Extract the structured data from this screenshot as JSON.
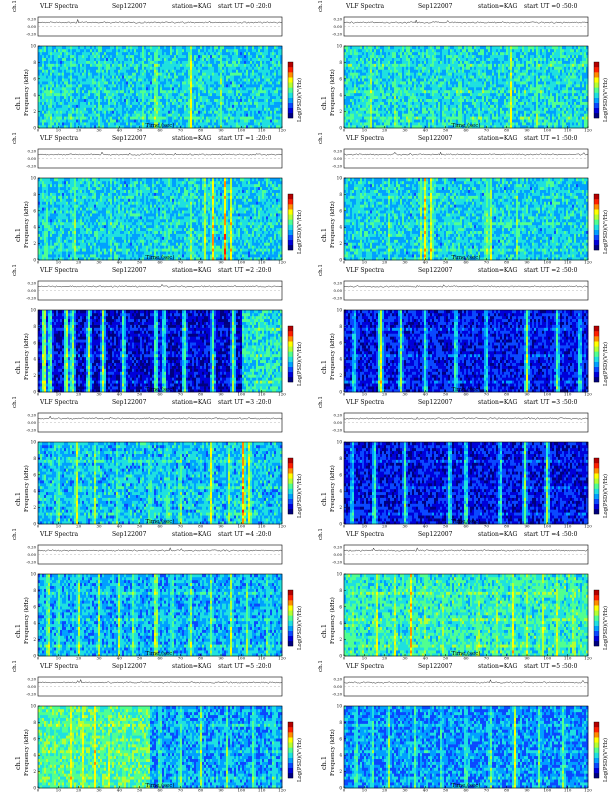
{
  "page": {
    "background": "#ffffff"
  },
  "colormap": [
    "#00007f",
    "#0000d9",
    "#0a48ff",
    "#00a0ff",
    "#1ee0e0",
    "#50ff90",
    "#b4ff32",
    "#ffff00",
    "#ff8c00",
    "#ff1e00",
    "#b40000"
  ],
  "labels": {
    "chart_name": "VLF Spectra",
    "date": "Sep122007",
    "station": "station=KAG",
    "start_prefix": "start UT",
    "amp_axis": "ch.1(V)",
    "freq_axis_1": "ch.1",
    "freq_axis_2": "Frequency (kHz)",
    "time_axis": "Time (sec)",
    "colorbar_label": "Log(PSD)(V²/Hz)"
  },
  "chart_data": [
    {
      "type": "heatmap",
      "start_ut": "=0 :20:0",
      "amp_ticks": [
        "0.20",
        "0.00",
        "-0.20"
      ],
      "y_ticks": [
        "0",
        "2",
        "4",
        "6",
        "8",
        "10"
      ],
      "x_ticks": [
        "0",
        "10",
        "20",
        "30",
        "40",
        "50",
        "60",
        "70",
        "80",
        "90",
        "100",
        "110",
        "120"
      ],
      "xlim": [
        0,
        120
      ],
      "ylim": [
        0,
        10
      ],
      "base_level": 0.38,
      "bursts": [
        [
          6,
          0.6
        ],
        [
          9,
          0.5
        ],
        [
          16,
          0.55
        ],
        [
          30,
          0.5
        ],
        [
          52,
          0.6
        ],
        [
          58,
          0.7
        ],
        [
          75,
          0.75
        ],
        [
          90,
          0.55
        ],
        [
          112,
          0.5
        ]
      ]
    },
    {
      "type": "heatmap",
      "start_ut": "=0 :50:0",
      "amp_ticks": [
        "0.20",
        "0.00",
        "-0.20"
      ],
      "y_ticks": [
        "0",
        "2",
        "4",
        "6",
        "8",
        "10"
      ],
      "x_ticks": [
        "0",
        "10",
        "20",
        "30",
        "40",
        "50",
        "60",
        "70",
        "80",
        "90",
        "100",
        "110",
        "120"
      ],
      "xlim": [
        0,
        120
      ],
      "ylim": [
        0,
        10
      ],
      "base_level": 0.4,
      "bursts": [
        [
          5,
          0.5
        ],
        [
          13,
          0.65
        ],
        [
          25,
          0.55
        ],
        [
          32,
          0.5
        ],
        [
          44,
          0.55
        ],
        [
          57,
          0.6
        ],
        [
          65,
          0.5
        ],
        [
          82,
          0.7
        ],
        [
          95,
          0.55
        ],
        [
          108,
          0.5
        ]
      ]
    },
    {
      "type": "heatmap",
      "start_ut": "=1 :20:0",
      "amp_ticks": [
        "0.20",
        "0.00",
        "-0.20"
      ],
      "y_ticks": [
        "0",
        "2",
        "4",
        "6",
        "8",
        "10"
      ],
      "x_ticks": [
        "0",
        "10",
        "20",
        "30",
        "40",
        "50",
        "60",
        "70",
        "80",
        "90",
        "100",
        "110",
        "120"
      ],
      "xlim": [
        0,
        120
      ],
      "ylim": [
        0,
        10
      ],
      "base_level": 0.38,
      "bursts": [
        [
          4,
          0.6
        ],
        [
          11,
          0.55
        ],
        [
          18,
          0.6
        ],
        [
          36,
          0.5
        ],
        [
          63,
          0.55
        ],
        [
          75,
          0.6
        ],
        [
          82,
          0.65
        ],
        [
          86,
          0.75
        ],
        [
          92,
          0.8
        ],
        [
          95,
          0.7
        ]
      ]
    },
    {
      "type": "heatmap",
      "start_ut": "=1 :50:0",
      "amp_ticks": [
        "0.20",
        "0.00",
        "-0.20"
      ],
      "y_ticks": [
        "0",
        "2",
        "4",
        "6",
        "8",
        "10"
      ],
      "x_ticks": [
        "0",
        "10",
        "20",
        "30",
        "40",
        "50",
        "60",
        "70",
        "80",
        "90",
        "100",
        "110",
        "120"
      ],
      "xlim": [
        0,
        120
      ],
      "ylim": [
        0,
        10
      ],
      "base_level": 0.38,
      "bursts": [
        [
          8,
          0.55
        ],
        [
          22,
          0.55
        ],
        [
          38,
          0.6
        ],
        [
          40,
          0.8
        ],
        [
          43,
          0.75
        ],
        [
          57,
          0.55
        ],
        [
          70,
          0.65
        ],
        [
          72,
          0.7
        ],
        [
          85,
          0.55
        ],
        [
          103,
          0.5
        ]
      ]
    },
    {
      "type": "heatmap",
      "start_ut": "=2 :20:0",
      "amp_ticks": [
        "0.20",
        "0.00",
        "-0.20"
      ],
      "y_ticks": [
        "0",
        "2",
        "4",
        "6",
        "8",
        "10"
      ],
      "x_ticks": [
        "0",
        "10",
        "20",
        "30",
        "40",
        "50",
        "60",
        "70",
        "80",
        "90",
        "100",
        "110",
        "120"
      ],
      "xlim": [
        0,
        120
      ],
      "ylim": [
        0,
        10
      ],
      "base_level": 0.12,
      "late_level": 0.42,
      "late_from": 100,
      "bursts": [
        [
          3,
          0.75
        ],
        [
          6,
          0.6
        ],
        [
          14,
          0.7
        ],
        [
          17,
          0.65
        ],
        [
          25,
          0.6
        ],
        [
          32,
          0.6
        ],
        [
          42,
          0.55
        ],
        [
          58,
          0.6
        ],
        [
          62,
          0.55
        ],
        [
          72,
          0.6
        ],
        [
          86,
          0.55
        ],
        [
          96,
          0.6
        ]
      ]
    },
    {
      "type": "heatmap",
      "start_ut": "=2 :50:0",
      "amp_ticks": [
        "0.20",
        "0.00",
        "-0.20"
      ],
      "y_ticks": [
        "0",
        "2",
        "4",
        "6",
        "8",
        "10"
      ],
      "x_ticks": [
        "0",
        "10",
        "20",
        "30",
        "40",
        "50",
        "60",
        "70",
        "80",
        "90",
        "100",
        "110",
        "120"
      ],
      "xlim": [
        0,
        120
      ],
      "ylim": [
        0,
        10
      ],
      "base_level": 0.16,
      "bursts": [
        [
          5,
          0.5
        ],
        [
          18,
          0.75
        ],
        [
          28,
          0.55
        ],
        [
          40,
          0.5
        ],
        [
          55,
          0.55
        ],
        [
          70,
          0.5
        ],
        [
          90,
          0.6
        ],
        [
          105,
          0.55
        ],
        [
          116,
          0.5
        ]
      ]
    },
    {
      "type": "heatmap",
      "start_ut": "=3 :20:0",
      "amp_ticks": [
        "0.20",
        "0.00",
        "-0.20"
      ],
      "y_ticks": [
        "0",
        "2",
        "4",
        "6",
        "8",
        "10"
      ],
      "x_ticks": [
        "0",
        "10",
        "20",
        "30",
        "40",
        "50",
        "60",
        "70",
        "80",
        "90",
        "100",
        "110",
        "120"
      ],
      "xlim": [
        0,
        120
      ],
      "ylim": [
        0,
        10
      ],
      "base_level": 0.36,
      "bursts": [
        [
          10,
          0.6
        ],
        [
          19,
          0.7
        ],
        [
          28,
          0.6
        ],
        [
          39,
          0.55
        ],
        [
          55,
          0.6
        ],
        [
          64,
          0.6
        ],
        [
          70,
          0.65
        ],
        [
          85,
          0.7
        ],
        [
          94,
          0.6
        ],
        [
          101,
          0.85
        ],
        [
          104,
          0.75
        ]
      ]
    },
    {
      "type": "heatmap",
      "start_ut": "=3 :50:0",
      "amp_ticks": [
        "0.20",
        "0.00",
        "-0.20"
      ],
      "y_ticks": [
        "0",
        "2",
        "4",
        "6",
        "8",
        "10"
      ],
      "x_ticks": [
        "0",
        "10",
        "20",
        "30",
        "40",
        "50",
        "60",
        "70",
        "80",
        "90",
        "100",
        "110",
        "120"
      ],
      "xlim": [
        0,
        120
      ],
      "ylim": [
        0,
        10
      ],
      "base_level": 0.15,
      "bursts": [
        [
          4,
          0.5
        ],
        [
          15,
          0.55
        ],
        [
          30,
          0.5
        ],
        [
          52,
          0.55
        ],
        [
          60,
          0.55
        ],
        [
          77,
          0.5
        ],
        [
          89,
          0.55
        ],
        [
          100,
          0.6
        ]
      ]
    },
    {
      "type": "heatmap",
      "start_ut": "=4 :20:0",
      "amp_ticks": [
        "0.20",
        "0.00",
        "-0.20"
      ],
      "y_ticks": [
        "0",
        "2",
        "4",
        "6",
        "8",
        "10"
      ],
      "x_ticks": [
        "0",
        "10",
        "20",
        "30",
        "40",
        "50",
        "60",
        "70",
        "80",
        "90",
        "100",
        "110",
        "120"
      ],
      "xlim": [
        0,
        120
      ],
      "ylim": [
        0,
        10
      ],
      "base_level": 0.34,
      "bursts": [
        [
          5,
          0.7
        ],
        [
          10,
          0.6
        ],
        [
          20,
          0.65
        ],
        [
          30,
          0.6
        ],
        [
          40,
          0.65
        ],
        [
          47,
          0.6
        ],
        [
          58,
          0.75
        ],
        [
          66,
          0.6
        ],
        [
          75,
          0.65
        ],
        [
          85,
          0.6
        ],
        [
          95,
          0.65
        ],
        [
          103,
          0.6
        ],
        [
          113,
          0.6
        ]
      ]
    },
    {
      "type": "heatmap",
      "start_ut": "=4 :50:0",
      "amp_ticks": [
        "0.20",
        "0.00",
        "-0.20"
      ],
      "y_ticks": [
        "0",
        "2",
        "4",
        "6",
        "8",
        "10"
      ],
      "x_ticks": [
        "0",
        "10",
        "20",
        "30",
        "40",
        "50",
        "60",
        "70",
        "80",
        "90",
        "100",
        "110",
        "120"
      ],
      "xlim": [
        0,
        120
      ],
      "ylim": [
        0,
        10
      ],
      "base_level": 0.44,
      "bursts": [
        [
          4,
          0.65
        ],
        [
          9,
          0.6
        ],
        [
          16,
          0.7
        ],
        [
          25,
          0.65
        ],
        [
          33,
          0.75
        ],
        [
          40,
          0.6
        ],
        [
          49,
          0.65
        ],
        [
          58,
          0.6
        ],
        [
          66,
          0.7
        ],
        [
          75,
          0.65
        ],
        [
          83,
          0.7
        ],
        [
          90,
          0.6
        ],
        [
          98,
          0.65
        ],
        [
          105,
          0.7
        ],
        [
          113,
          0.7
        ],
        [
          118,
          0.6
        ]
      ]
    },
    {
      "type": "heatmap",
      "start_ut": "=5 :20:0",
      "amp_ticks": [
        "0.20",
        "0.00",
        "-0.20"
      ],
      "y_ticks": [
        "0",
        "2",
        "4",
        "6",
        "8",
        "10"
      ],
      "x_ticks": [
        "0",
        "10",
        "20",
        "30",
        "40",
        "50",
        "60",
        "70",
        "80",
        "90",
        "100",
        "110",
        "120"
      ],
      "xlim": [
        0,
        120
      ],
      "ylim": [
        0,
        10
      ],
      "base_level": 0.48,
      "late_level": 0.32,
      "late_from": 55,
      "bursts": [
        [
          8,
          0.65
        ],
        [
          16,
          0.75
        ],
        [
          22,
          0.7
        ],
        [
          28,
          0.7
        ],
        [
          35,
          0.65
        ],
        [
          43,
          0.6
        ],
        [
          50,
          0.6
        ],
        [
          60,
          0.6
        ],
        [
          70,
          0.6
        ],
        [
          80,
          0.6
        ],
        [
          93,
          0.55
        ],
        [
          106,
          0.6
        ],
        [
          116,
          0.55
        ]
      ]
    },
    {
      "type": "heatmap",
      "start_ut": "=5 :50:0",
      "amp_ticks": [
        "0.20",
        "0.00",
        "-0.20"
      ],
      "y_ticks": [
        "0",
        "2",
        "4",
        "6",
        "8",
        "10"
      ],
      "x_ticks": [
        "0",
        "10",
        "20",
        "30",
        "40",
        "50",
        "60",
        "70",
        "80",
        "90",
        "100",
        "110",
        "120"
      ],
      "xlim": [
        0,
        120
      ],
      "ylim": [
        0,
        10
      ],
      "base_level": 0.3,
      "bursts": [
        [
          6,
          0.6
        ],
        [
          14,
          0.55
        ],
        [
          22,
          0.6
        ],
        [
          35,
          0.55
        ],
        [
          48,
          0.55
        ],
        [
          60,
          0.55
        ],
        [
          72,
          0.6
        ],
        [
          84,
          0.7
        ],
        [
          96,
          0.55
        ],
        [
          108,
          0.6
        ]
      ]
    }
  ]
}
